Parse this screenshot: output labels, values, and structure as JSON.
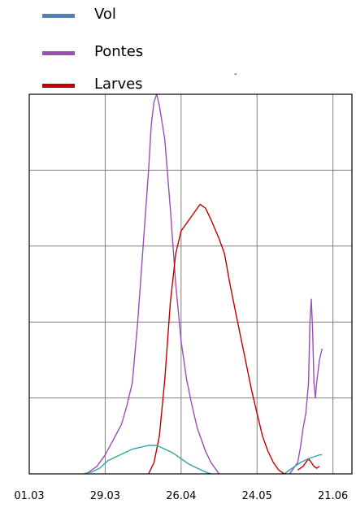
{
  "legend": {
    "items": [
      {
        "label": "Vol",
        "color": "#4f81bd"
      },
      {
        "label": "Pontes",
        "color": "#9b4fb5"
      },
      {
        "label": "Larves",
        "color": "#c00000"
      }
    ],
    "extra_mark": "-"
  },
  "chart_data": {
    "type": "line",
    "title": "",
    "xlabel": "",
    "ylabel": "",
    "x_tick_labels": [
      "01.03",
      "29.03",
      "26.04",
      "24.05",
      "21.06"
    ],
    "x_tick_days": [
      0,
      28,
      56,
      84,
      112
    ],
    "xlim": [
      0,
      119
    ],
    "ylim": [
      0,
      100
    ],
    "grid": true,
    "y_tick_labels": [],
    "series": [
      {
        "name": "Pontes",
        "color": "#9b4fb5",
        "points": [
          [
            21,
            0
          ],
          [
            23,
            1
          ],
          [
            25,
            2
          ],
          [
            28,
            5
          ],
          [
            31,
            9
          ],
          [
            34,
            13
          ],
          [
            36,
            18
          ],
          [
            38,
            24
          ],
          [
            40,
            40
          ],
          [
            42,
            60
          ],
          [
            44,
            80
          ],
          [
            45,
            92
          ],
          [
            46,
            98
          ],
          [
            47,
            100
          ],
          [
            48,
            97
          ],
          [
            50,
            88
          ],
          [
            52,
            70
          ],
          [
            54,
            50
          ],
          [
            56,
            35
          ],
          [
            58,
            25
          ],
          [
            60,
            18
          ],
          [
            62,
            12
          ],
          [
            65,
            6
          ],
          [
            67,
            3
          ],
          [
            69,
            1
          ],
          [
            70,
            0
          ]
        ]
      },
      {
        "name": "Pontes",
        "color": "#9b4fb5",
        "points": [
          [
            96,
            0
          ],
          [
            97,
            1
          ],
          [
            99,
            3
          ],
          [
            100,
            7
          ],
          [
            101,
            12
          ],
          [
            102,
            16
          ],
          [
            103,
            24
          ],
          [
            103.5,
            40
          ],
          [
            104,
            46
          ],
          [
            104.5,
            38
          ],
          [
            105,
            24
          ],
          [
            105.5,
            20
          ],
          [
            106,
            24
          ],
          [
            107,
            30
          ],
          [
            108,
            33
          ]
        ]
      },
      {
        "name": "Larves",
        "color": "#c00000",
        "points": [
          [
            44,
            0
          ],
          [
            46,
            3
          ],
          [
            48,
            10
          ],
          [
            50,
            25
          ],
          [
            52,
            45
          ],
          [
            54,
            58
          ],
          [
            56,
            64
          ],
          [
            58,
            66
          ],
          [
            60,
            68
          ],
          [
            62,
            70
          ],
          [
            63,
            71
          ],
          [
            65,
            70
          ],
          [
            67,
            67
          ],
          [
            70,
            62
          ],
          [
            72,
            58
          ],
          [
            74,
            50
          ],
          [
            76,
            43
          ],
          [
            78,
            36
          ],
          [
            80,
            29
          ],
          [
            82,
            22
          ],
          [
            84,
            16
          ],
          [
            86,
            10
          ],
          [
            88,
            6
          ],
          [
            90,
            3
          ],
          [
            92,
            1
          ],
          [
            94,
            0
          ]
        ]
      },
      {
        "name": "Larves",
        "color": "#c00000",
        "points": [
          [
            99,
            1
          ],
          [
            101,
            2
          ],
          [
            103,
            4
          ],
          [
            104,
            3
          ],
          [
            105,
            2
          ],
          [
            106,
            1.5
          ],
          [
            107,
            2
          ]
        ]
      },
      {
        "name": "Vol",
        "color": "#2aa7a7",
        "points": [
          [
            20,
            0
          ],
          [
            23,
            0.5
          ],
          [
            26,
            1.5
          ],
          [
            29,
            3.5
          ],
          [
            32,
            4.5
          ],
          [
            35,
            5.5
          ],
          [
            38,
            6.5
          ],
          [
            41,
            7
          ],
          [
            44,
            7.5
          ],
          [
            47,
            7.5
          ],
          [
            50,
            6.5
          ],
          [
            53,
            5.5
          ],
          [
            56,
            4
          ],
          [
            59,
            2.5
          ],
          [
            62,
            1.5
          ],
          [
            65,
            0.5
          ],
          [
            67,
            0
          ]
        ]
      },
      {
        "name": "Vol",
        "color": "#2aa7a7",
        "points": [
          [
            94,
            0
          ],
          [
            97,
            1.5
          ],
          [
            100,
            3
          ],
          [
            103,
            4
          ],
          [
            105,
            4.5
          ],
          [
            107,
            5
          ],
          [
            108,
            5
          ]
        ]
      }
    ]
  }
}
